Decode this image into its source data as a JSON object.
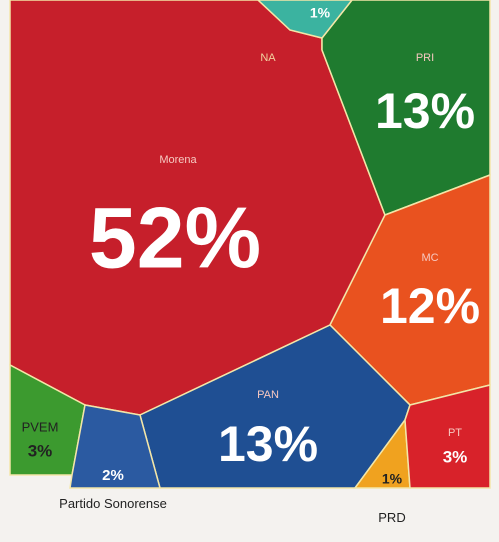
{
  "chart_data": {
    "type": "voronoi",
    "categories": [
      "Morena",
      "PRI",
      "MC",
      "PAN",
      "PVEM",
      "Partido Sonorense",
      "NA",
      "PRD",
      "PT"
    ],
    "values": [
      52,
      13,
      12,
      13,
      3,
      2,
      1,
      1,
      3
    ],
    "value_labels": [
      "52%",
      "13%",
      "12%",
      "13%",
      "3%",
      "2%",
      "1%",
      "1%",
      "3%"
    ],
    "colors": [
      "#c61f2b",
      "#1f7b2f",
      "#e9521f",
      "#1f4f93",
      "#3c9a2f",
      "#2b5aa1",
      "#3bb3a0",
      "#f0a21f",
      "#d8222a"
    ]
  }
}
